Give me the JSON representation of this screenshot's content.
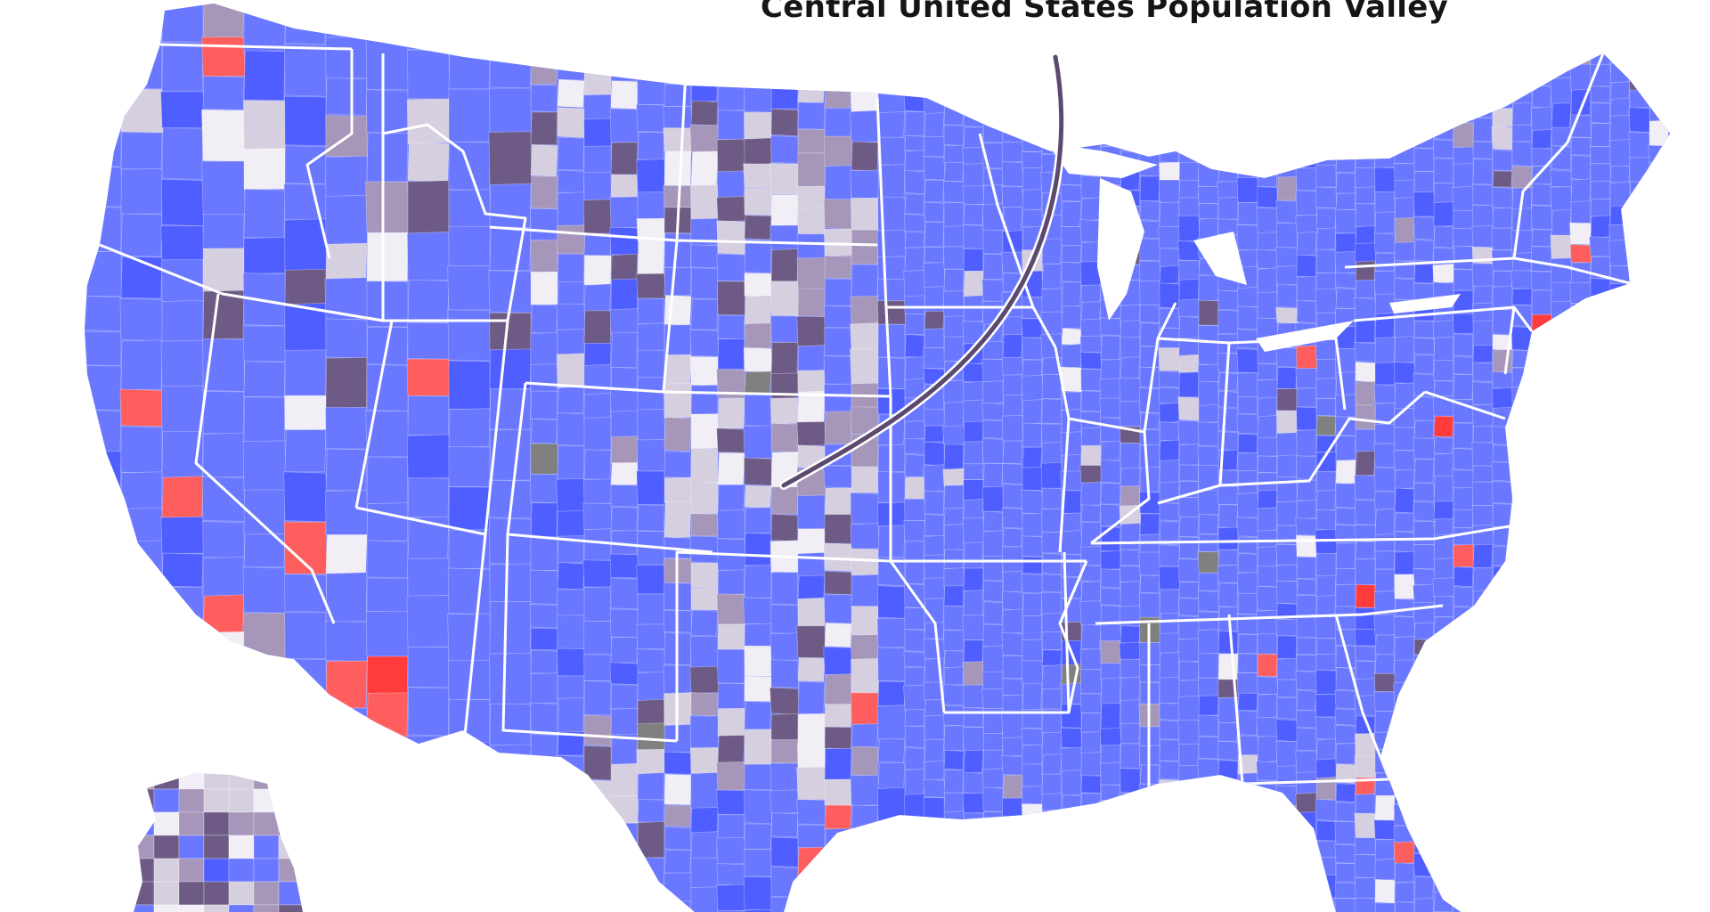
{
  "map": {
    "title": "Central United States Population Valley",
    "legend_colors": {
      "dense_county": "#ff5e5e",
      "most_dense_county": "#ff3b3b",
      "populated_county": "#6a78ff",
      "deep_blue_county": "#4f5fff",
      "sparse_county_light": "#d6cfe0",
      "sparse_county_mid": "#a696b9",
      "sparse_county_dark": "#6e5b85",
      "very_sparse_county": "#f1eef6",
      "no_data_county": "#808080",
      "state_border": "#ffffff",
      "valley_arc": "#5b4a6e"
    },
    "regions_shown": [
      "contiguous-united-states",
      "alaska"
    ]
  }
}
